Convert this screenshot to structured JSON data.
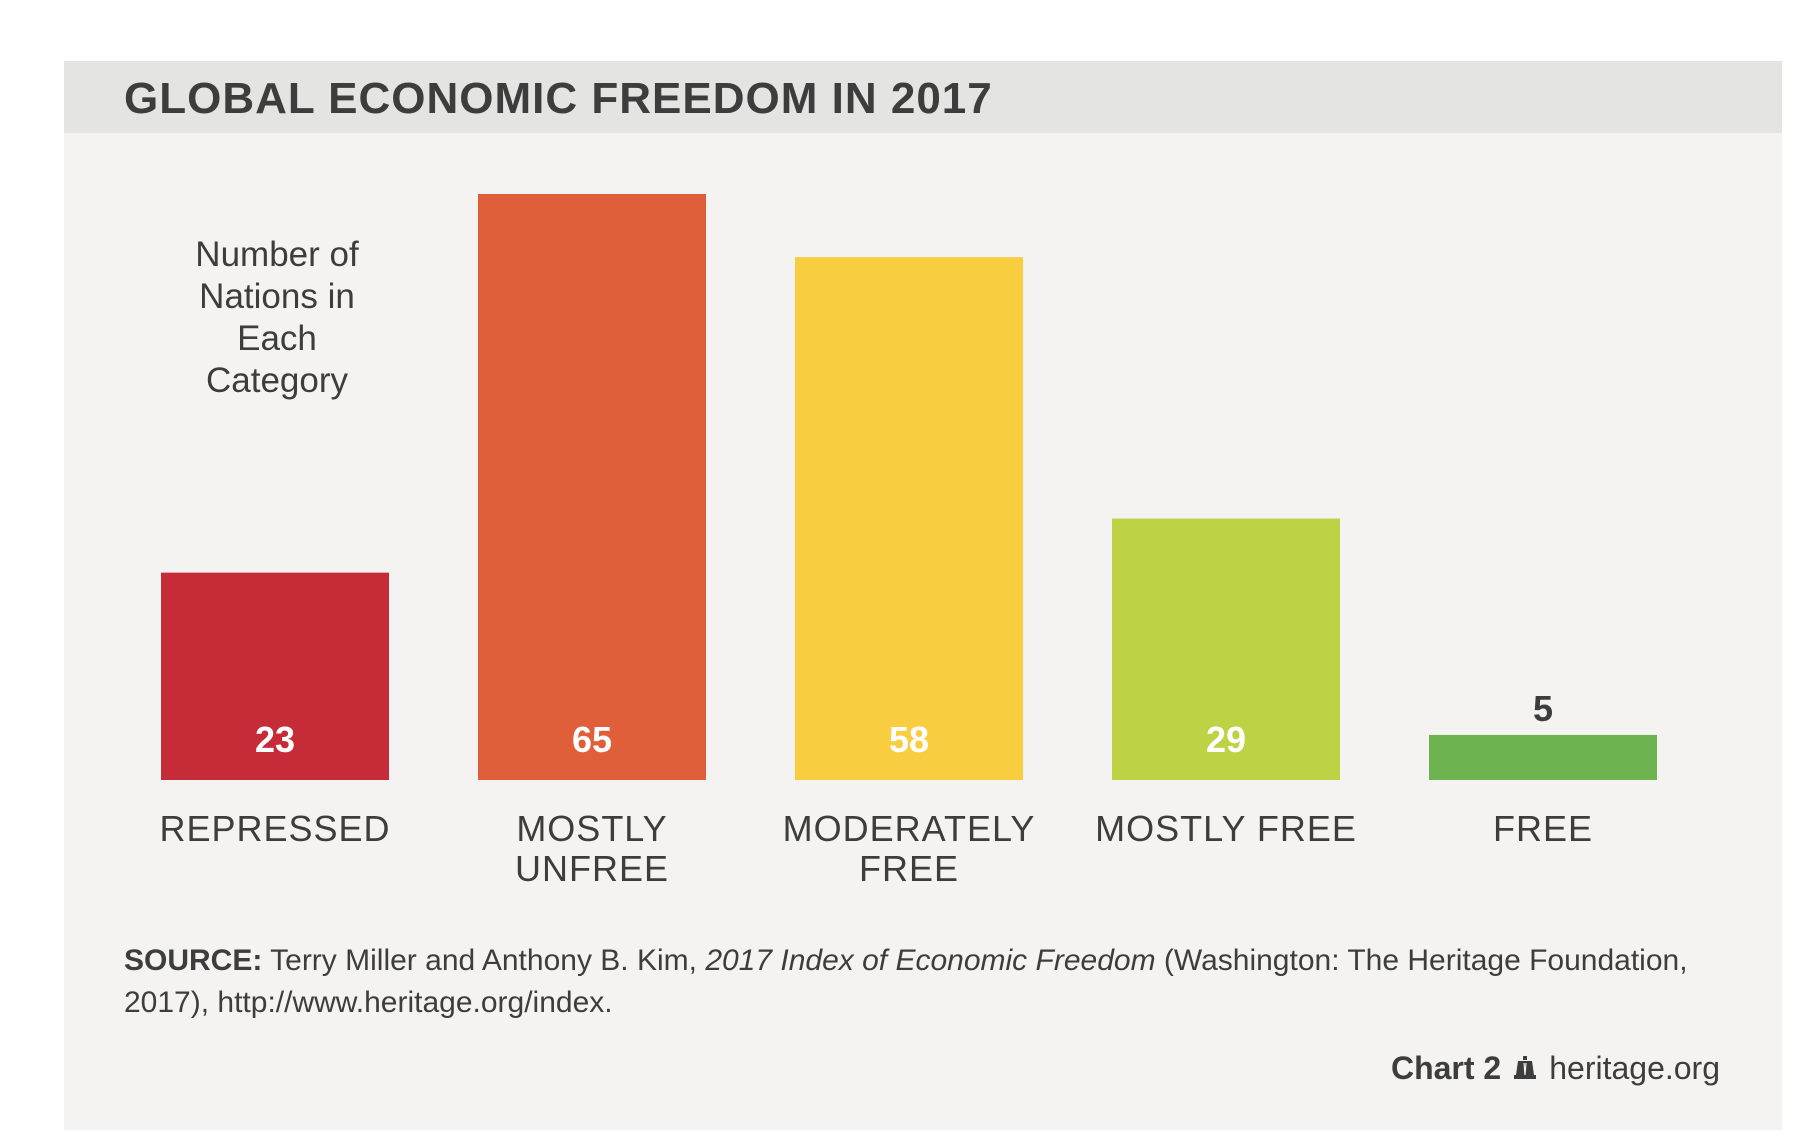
{
  "colors": {
    "panel_bg": "#f4f3f2",
    "title_bar_bg": "#e4e4e3",
    "text": "#3d3d3d"
  },
  "chart_data": {
    "type": "bar",
    "title": "GLOBAL ECONOMIC FREEDOM IN 2017",
    "ylabel": "Number of\nNations in\nEach\nCategory",
    "xlabel": "",
    "ylim": [
      0,
      65
    ],
    "categories": [
      [
        "REPRESSED"
      ],
      [
        "MOSTLY",
        "UNFREE"
      ],
      [
        "MODERATELY",
        "FREE"
      ],
      [
        "MOSTLY FREE"
      ],
      [
        "FREE"
      ]
    ],
    "values": [
      23,
      65,
      58,
      29,
      5
    ],
    "value_labels": [
      "23",
      "65",
      "58",
      "29",
      "5"
    ],
    "bar_colors": [
      "#c62b38",
      "#e05e39",
      "#f9cd40",
      "#bfd245",
      "#6db350"
    ],
    "label_colors": [
      "#ffffff",
      "#ffffff",
      "#ffffff",
      "#ffffff",
      "#3d3d3d"
    ]
  },
  "source": {
    "label": "SOURCE:",
    "text_before": " Terry Miller and Anthony B. Kim, ",
    "italic": "2017 Index of Economic Freedom",
    "text_after": " (Washington: The Heritage Foundation, 2017), http://www.heritage.org/index."
  },
  "credit": {
    "chart_number": "Chart 2",
    "site": "heritage.org",
    "icon": "liberty-bell-icon"
  }
}
